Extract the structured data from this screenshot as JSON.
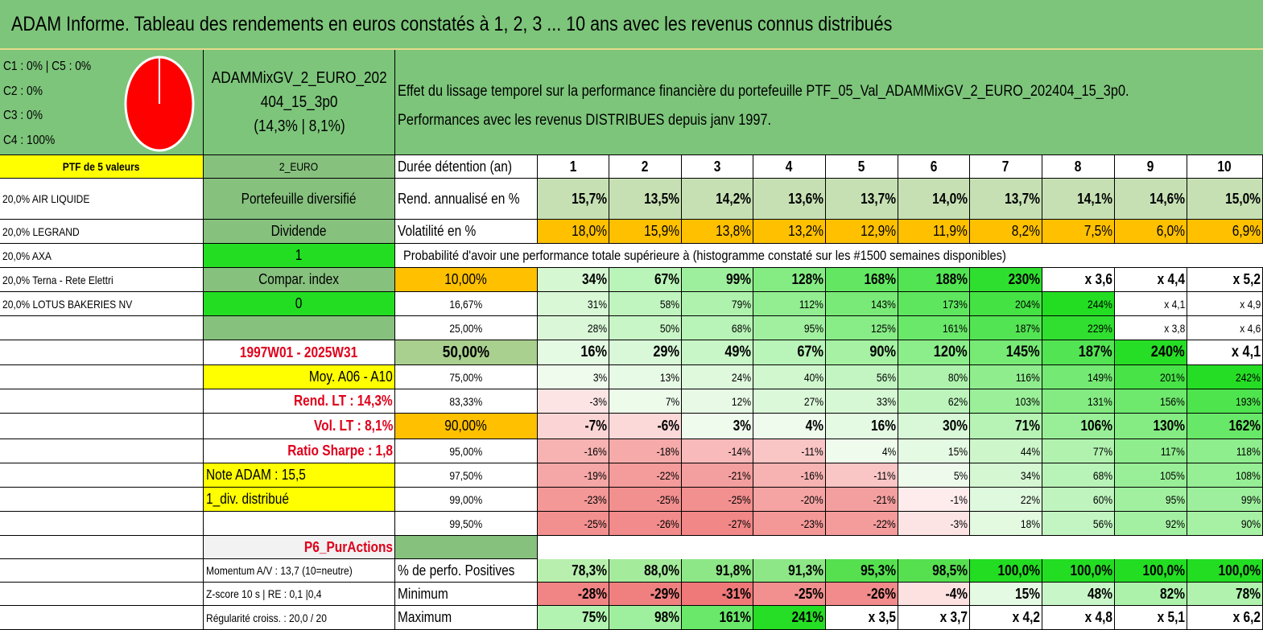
{
  "title": "ADAM Informe. Tableau des rendements en euros constatés à 1, 2, 3 ... 10 ans avec les revenus connus distribués",
  "legend": {
    "lines": [
      "C1 : 0% | C5 : 0%",
      "C2 : 0%",
      "C3 : 0%",
      "C4 : 100%"
    ],
    "pie_color": "#ff0000"
  },
  "portfolio": {
    "name_line1": "ADAMMixGV_2_EURO_202",
    "name_line2": "404_15_3p0",
    "name_line3": "(14,3% | 8,1%)"
  },
  "description": {
    "line1": "Effet du lissage temporel sur la performance financière du portefeuille PTF_05_Val_ADAMMixGV_2_EURO_202404_15_3p0.",
    "line2": "Performances avec les revenus DISTRIBUES depuis janv 1997."
  },
  "left": {
    "header": "PTF de 5 valeurs",
    "holdings": [
      "20,0% AIR LIQUIDE",
      "20,0% LEGRAND",
      "20,0% AXA",
      "20,0% Terna - Rete Elettri",
      "20,0% LOTUS BAKERIES NV"
    ]
  },
  "mid": {
    "currency": "2_EURO",
    "diversified": "Portefeuille diversifié",
    "dividend_label": "Dividende",
    "dividend_value": "1",
    "compar_label": "Compar. index",
    "compar_value": "0",
    "period": "1997W01 - 2025W31",
    "moy": "Moy. A06 - A10",
    "rend_lt": "Rend. LT : 14,3%",
    "vol_lt": "Vol. LT : 8,1%",
    "sharpe": "Ratio Sharpe : 1,8",
    "note": "Note ADAM : 15,5",
    "div": "1_div. distribué",
    "purity": "P6_PurActions",
    "momentum": "Momentum A/V : 13,7 (10=neutre)",
    "zscore": "Z-score 10 s | RE : 0,1 |0,4",
    "regularite": "Régularité croiss. : 20,0 / 20"
  },
  "table": {
    "duration_label": "Durée détention (an)",
    "years": [
      "1",
      "2",
      "3",
      "4",
      "5",
      "6",
      "7",
      "8",
      "9",
      "10"
    ],
    "rend_label": "Rend. annualisé en %",
    "rend": [
      "15,7%",
      "13,5%",
      "14,2%",
      "13,6%",
      "13,7%",
      "14,0%",
      "13,7%",
      "14,1%",
      "14,6%",
      "15,0%"
    ],
    "vol_label": "Volatilité en %",
    "vol": [
      "18,0%",
      "15,9%",
      "13,8%",
      "13,2%",
      "12,9%",
      "11,9%",
      "8,2%",
      "7,5%",
      "6,0%",
      "6,9%"
    ],
    "prob_title": "Probabilité d'avoir une performance totale supérieure à (histogramme constaté sur les #1500 semaines disponibles)",
    "quantiles": [
      {
        "label": "10,00%",
        "values": [
          "34%",
          "67%",
          "99%",
          "128%",
          "168%",
          "188%",
          "230%",
          "x 3,6",
          "x 4,4",
          "x 5,2"
        ]
      },
      {
        "label": "16,67%",
        "values": [
          "31%",
          "58%",
          "79%",
          "112%",
          "143%",
          "173%",
          "204%",
          "244%",
          "x 4,1",
          "x 4,9"
        ]
      },
      {
        "label": "25,00%",
        "values": [
          "28%",
          "50%",
          "68%",
          "95%",
          "125%",
          "161%",
          "187%",
          "229%",
          "x 3,8",
          "x 4,6"
        ]
      },
      {
        "label": "50,00%",
        "values": [
          "16%",
          "29%",
          "49%",
          "67%",
          "90%",
          "120%",
          "145%",
          "187%",
          "240%",
          "x 4,1"
        ]
      },
      {
        "label": "75,00%",
        "values": [
          "3%",
          "13%",
          "24%",
          "40%",
          "56%",
          "80%",
          "116%",
          "149%",
          "201%",
          "242%"
        ]
      },
      {
        "label": "83,33%",
        "values": [
          "-3%",
          "7%",
          "12%",
          "27%",
          "33%",
          "62%",
          "103%",
          "131%",
          "156%",
          "193%"
        ]
      },
      {
        "label": "90,00%",
        "values": [
          "-7%",
          "-6%",
          "3%",
          "4%",
          "16%",
          "30%",
          "71%",
          "106%",
          "130%",
          "162%"
        ]
      },
      {
        "label": "95,00%",
        "values": [
          "-16%",
          "-18%",
          "-14%",
          "-11%",
          "4%",
          "15%",
          "44%",
          "77%",
          "117%",
          "118%"
        ]
      },
      {
        "label": "97,50%",
        "values": [
          "-19%",
          "-22%",
          "-21%",
          "-16%",
          "-11%",
          "5%",
          "34%",
          "68%",
          "105%",
          "108%"
        ]
      },
      {
        "label": "99,00%",
        "values": [
          "-23%",
          "-25%",
          "-25%",
          "-20%",
          "-21%",
          "-1%",
          "22%",
          "60%",
          "95%",
          "99%"
        ]
      },
      {
        "label": "99,50%",
        "values": [
          "-25%",
          "-26%",
          "-27%",
          "-23%",
          "-22%",
          "-3%",
          "18%",
          "56%",
          "92%",
          "90%"
        ]
      }
    ],
    "pos_label": "% de perfo. Positives",
    "pos": [
      "78,3%",
      "88,0%",
      "91,8%",
      "91,3%",
      "95,3%",
      "98,5%",
      "100,0%",
      "100,0%",
      "100,0%",
      "100,0%"
    ],
    "min_label": "Minimum",
    "min": [
      "-28%",
      "-29%",
      "-31%",
      "-25%",
      "-26%",
      "-4%",
      "15%",
      "48%",
      "82%",
      "78%"
    ],
    "max_label": "Maximum",
    "max": [
      "75%",
      "98%",
      "161%",
      "241%",
      "x 3,5",
      "x 3,7",
      "x 4,2",
      "x 4,8",
      "x 5,1",
      "x 6,2"
    ]
  },
  "colors": {
    "header_green": "#7dc57b",
    "mid_green": "#86c17e",
    "bright_green": "#22dd22",
    "yellow": "#ffff00",
    "orange": "#ffc000",
    "rend_bg": "#c6e0b4",
    "median_bg": "#a9d08e",
    "purity_bg": "#f2f2f2",
    "title_red": "#e0001b"
  }
}
